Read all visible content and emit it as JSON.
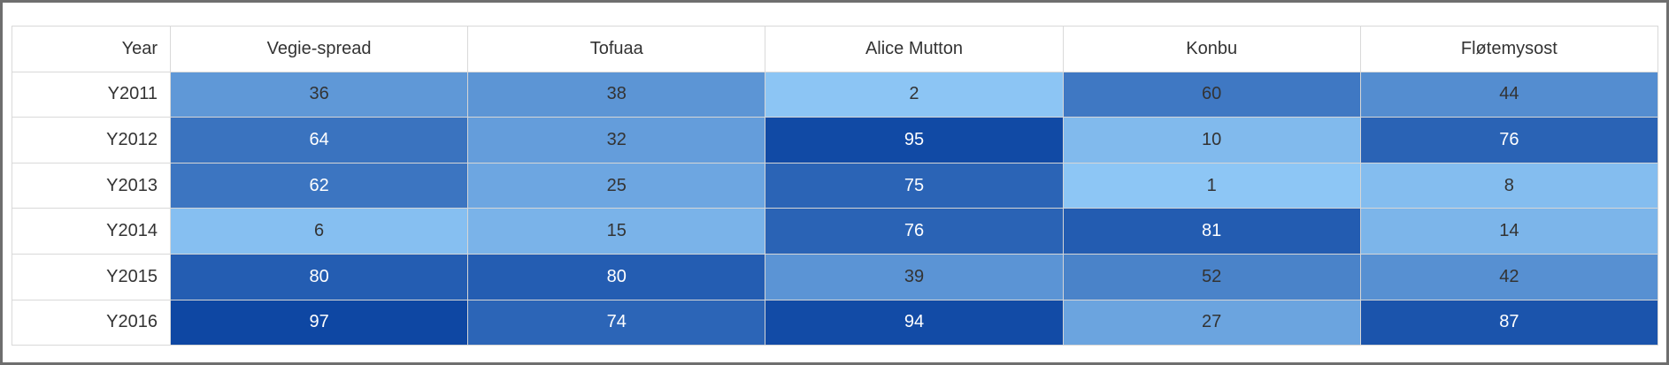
{
  "chart_data": {
    "type": "heatmap",
    "row_header": "Year",
    "categories": [
      "Vegie-spread",
      "Tofuaa",
      "Alice Mutton",
      "Konbu",
      "Fløtemysost"
    ],
    "rows": [
      "Y2011",
      "Y2012",
      "Y2013",
      "Y2014",
      "Y2015",
      "Y2016"
    ],
    "values": [
      [
        36,
        38,
        2,
        60,
        44
      ],
      [
        64,
        32,
        95,
        10,
        76
      ],
      [
        62,
        25,
        75,
        1,
        8
      ],
      [
        6,
        15,
        76,
        81,
        14
      ],
      [
        80,
        80,
        39,
        52,
        42
      ],
      [
        97,
        74,
        94,
        27,
        87
      ]
    ],
    "value_range": [
      1,
      97
    ],
    "colors": {
      "low": "#8dc6f5",
      "high": "#0e47a3",
      "text_dark": "#333333",
      "text_light": "#ffffff"
    }
  }
}
